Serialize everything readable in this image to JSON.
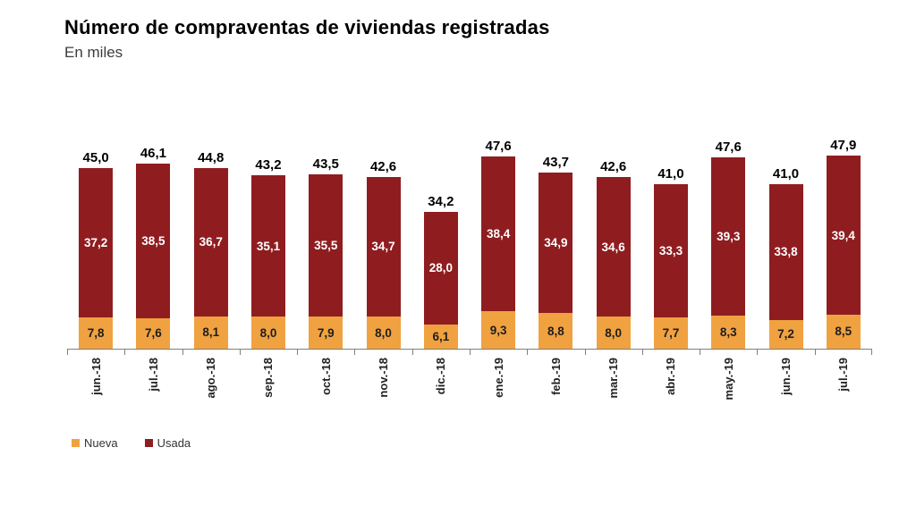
{
  "chart_data": {
    "type": "bar",
    "stacked": true,
    "title": "Número de compraventas de viviendas registradas",
    "subtitle": "En miles",
    "categories": [
      "jun.-18",
      "jul.-18",
      "ago.-18",
      "sep.-18",
      "oct.-18",
      "nov.-18",
      "dic.-18",
      "ene.-19",
      "feb.-19",
      "mar.-19",
      "abr.-19",
      "may.-19",
      "jun.-19",
      "jul.-19"
    ],
    "series": [
      {
        "name": "Nueva",
        "color": "#f0a240",
        "values": [
          7.8,
          7.6,
          8.1,
          8.0,
          7.9,
          8.0,
          6.1,
          9.3,
          8.8,
          8.0,
          7.7,
          8.3,
          7.2,
          8.5
        ]
      },
      {
        "name": "Usada",
        "color": "#8f1d20",
        "values": [
          37.2,
          38.5,
          36.7,
          35.1,
          35.5,
          34.7,
          28.0,
          38.4,
          34.9,
          34.6,
          33.3,
          39.3,
          33.8,
          39.4
        ]
      }
    ],
    "totals": [
      45.0,
      46.1,
      44.8,
      43.2,
      43.5,
      42.6,
      34.2,
      47.6,
      43.7,
      42.6,
      41.0,
      47.6,
      41.0,
      47.9
    ],
    "ylim": [
      0,
      50
    ],
    "grid": false,
    "legend_position": "bottom-left",
    "value_label_format": "decimal-comma",
    "total_label_color": "#000000",
    "usada_value_label_color": "#ffffff",
    "nueva_value_label_color": "#1e1e1e"
  }
}
